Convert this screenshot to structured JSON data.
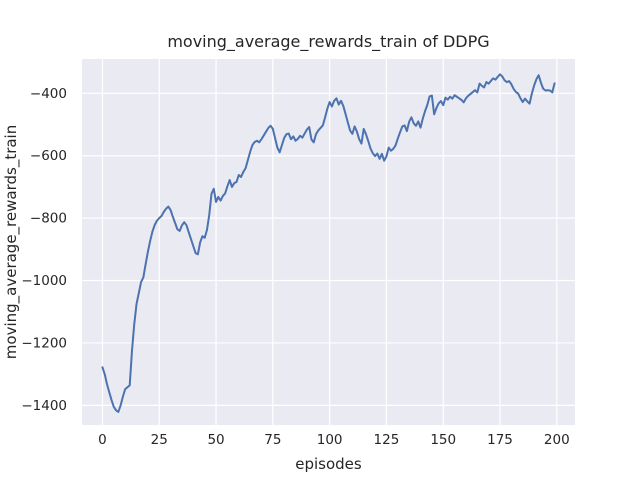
{
  "figure": {
    "title": "moving_average_rewards_train of DDPG",
    "xlabel": "episodes",
    "ylabel": "moving_average_rewards_train"
  },
  "colors": {
    "fig_bg": "#ffffff",
    "plot_bg": "#eaeaf2",
    "grid": "#ffffff",
    "line": "#4c72b0",
    "text": "#262626"
  },
  "chart_data": {
    "type": "line",
    "title": "moving_average_rewards_train of DDPG",
    "xlabel": "episodes",
    "ylabel": "moving_average_rewards_train",
    "grid": true,
    "legend": false,
    "xlim": [
      -9,
      208
    ],
    "ylim": [
      -1463,
      -290
    ],
    "xticks": [
      0,
      25,
      50,
      75,
      100,
      125,
      150,
      175,
      200
    ],
    "xticklabels": [
      "0",
      "25",
      "50",
      "75",
      "100",
      "125",
      "150",
      "175",
      "200"
    ],
    "yticks": [
      -400,
      -600,
      -800,
      -1000,
      -1200,
      -1400
    ],
    "yticklabels": [
      "−400",
      "−600",
      "−800",
      "−1000",
      "−1200",
      "−1400"
    ],
    "series": [
      {
        "name": "moving_average_rewards_train",
        "x_start": 0,
        "x_step": 1,
        "values": [
          -1278,
          -1300,
          -1332,
          -1358,
          -1383,
          -1405,
          -1416,
          -1421,
          -1400,
          -1372,
          -1348,
          -1342,
          -1336,
          -1225,
          -1140,
          -1075,
          -1040,
          -1005,
          -990,
          -948,
          -908,
          -873,
          -843,
          -822,
          -808,
          -800,
          -793,
          -780,
          -770,
          -763,
          -774,
          -796,
          -816,
          -836,
          -841,
          -823,
          -813,
          -823,
          -846,
          -868,
          -890,
          -912,
          -916,
          -878,
          -858,
          -863,
          -838,
          -790,
          -722,
          -706,
          -748,
          -732,
          -744,
          -729,
          -721,
          -698,
          -678,
          -700,
          -688,
          -684,
          -662,
          -668,
          -652,
          -640,
          -614,
          -588,
          -566,
          -556,
          -552,
          -557,
          -547,
          -535,
          -523,
          -511,
          -504,
          -514,
          -544,
          -574,
          -589,
          -566,
          -543,
          -531,
          -529,
          -547,
          -538,
          -552,
          -546,
          -536,
          -542,
          -529,
          -516,
          -508,
          -548,
          -557,
          -531,
          -519,
          -511,
          -503,
          -477,
          -449,
          -428,
          -442,
          -424,
          -416,
          -436,
          -424,
          -440,
          -466,
          -493,
          -519,
          -530,
          -506,
          -523,
          -547,
          -561,
          -514,
          -531,
          -553,
          -577,
          -592,
          -601,
          -593,
          -610,
          -594,
          -616,
          -602,
          -574,
          -584,
          -578,
          -567,
          -545,
          -525,
          -506,
          -503,
          -521,
          -491,
          -477,
          -496,
          -504,
          -490,
          -510,
          -481,
          -457,
          -437,
          -410,
          -407,
          -467,
          -447,
          -432,
          -425,
          -438,
          -414,
          -420,
          -411,
          -417,
          -406,
          -411,
          -416,
          -421,
          -429,
          -416,
          -408,
          -402,
          -396,
          -390,
          -397,
          -369,
          -376,
          -381,
          -364,
          -369,
          -360,
          -352,
          -356,
          -347,
          -339,
          -346,
          -358,
          -364,
          -361,
          -371,
          -386,
          -396,
          -401,
          -416,
          -428,
          -417,
          -426,
          -433,
          -401,
          -375,
          -355,
          -342,
          -366,
          -385,
          -391,
          -390,
          -391,
          -397,
          -368
        ]
      }
    ]
  }
}
